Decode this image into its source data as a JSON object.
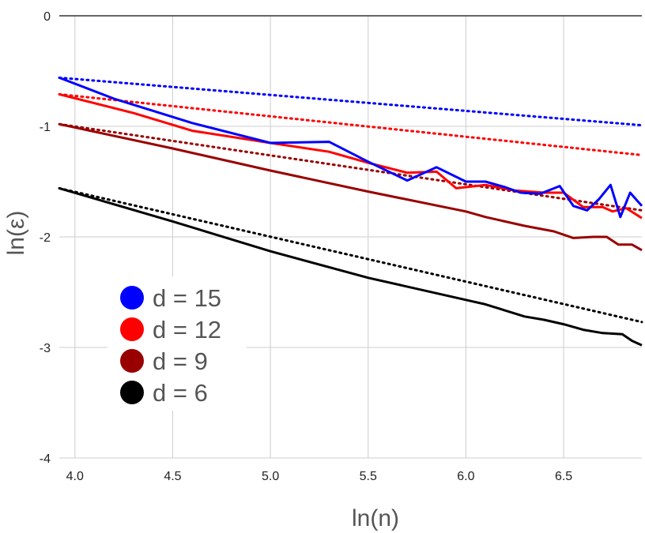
{
  "chart_data": {
    "type": "line",
    "xlabel": "ln(n)",
    "ylabel": "ln(ε)",
    "xlim": [
      3.92,
      6.9
    ],
    "ylim": [
      -4,
      0
    ],
    "x_ticks": [
      {
        "value": 4.0,
        "label": "4.0"
      },
      {
        "value": 4.5,
        "label": "4.5"
      },
      {
        "value": 5.0,
        "label": "5.0"
      },
      {
        "value": 5.5,
        "label": "5.5"
      },
      {
        "value": 6.0,
        "label": "6.0"
      },
      {
        "value": 6.5,
        "label": "6.5"
      }
    ],
    "y_ticks": [
      {
        "value": 0,
        "label": "0"
      },
      {
        "value": -1,
        "label": "-1"
      },
      {
        "value": -2,
        "label": "-2"
      },
      {
        "value": -3,
        "label": "-3"
      },
      {
        "value": -4,
        "label": "-4"
      }
    ],
    "grid": true,
    "legend_position": "lower-left",
    "series": [
      {
        "name": "d = 15",
        "color": "#0000ff",
        "points": [
          [
            3.92,
            -0.56
          ],
          [
            4.2,
            -0.75
          ],
          [
            4.6,
            -0.97
          ],
          [
            5.0,
            -1.15
          ],
          [
            5.3,
            -1.14
          ],
          [
            5.5,
            -1.32
          ],
          [
            5.7,
            -1.49
          ],
          [
            5.85,
            -1.37
          ],
          [
            6.0,
            -1.5
          ],
          [
            6.1,
            -1.5
          ],
          [
            6.2,
            -1.55
          ],
          [
            6.28,
            -1.6
          ],
          [
            6.38,
            -1.61
          ],
          [
            6.48,
            -1.54
          ],
          [
            6.55,
            -1.72
          ],
          [
            6.62,
            -1.76
          ],
          [
            6.68,
            -1.66
          ],
          [
            6.74,
            -1.53
          ],
          [
            6.79,
            -1.82
          ],
          [
            6.84,
            -1.6
          ],
          [
            6.9,
            -1.72
          ]
        ],
        "trend": [
          [
            3.92,
            -0.56
          ],
          [
            6.9,
            -0.99
          ]
        ]
      },
      {
        "name": "d = 12",
        "color": "#ff0000",
        "points": [
          [
            3.92,
            -0.71
          ],
          [
            4.3,
            -0.88
          ],
          [
            4.6,
            -1.04
          ],
          [
            5.0,
            -1.15
          ],
          [
            5.3,
            -1.23
          ],
          [
            5.5,
            -1.33
          ],
          [
            5.7,
            -1.42
          ],
          [
            5.85,
            -1.41
          ],
          [
            5.95,
            -1.56
          ],
          [
            6.1,
            -1.53
          ],
          [
            6.25,
            -1.58
          ],
          [
            6.4,
            -1.6
          ],
          [
            6.5,
            -1.6
          ],
          [
            6.6,
            -1.73
          ],
          [
            6.7,
            -1.73
          ],
          [
            6.75,
            -1.77
          ],
          [
            6.82,
            -1.74
          ],
          [
            6.9,
            -1.83
          ]
        ],
        "trend": [
          [
            3.92,
            -0.71
          ],
          [
            6.9,
            -1.26
          ]
        ]
      },
      {
        "name": "d = 9",
        "color": "#990000",
        "points": [
          [
            3.92,
            -0.98
          ],
          [
            4.5,
            -1.2
          ],
          [
            5.0,
            -1.4
          ],
          [
            5.5,
            -1.59
          ],
          [
            6.0,
            -1.77
          ],
          [
            6.1,
            -1.82
          ],
          [
            6.3,
            -1.9
          ],
          [
            6.45,
            -1.95
          ],
          [
            6.55,
            -2.01
          ],
          [
            6.65,
            -2.0
          ],
          [
            6.72,
            -2.0
          ],
          [
            6.78,
            -2.07
          ],
          [
            6.85,
            -2.07
          ],
          [
            6.9,
            -2.12
          ]
        ],
        "trend": [
          [
            3.92,
            -0.98
          ],
          [
            6.9,
            -1.76
          ]
        ]
      },
      {
        "name": "d = 6",
        "color": "#000000",
        "points": [
          [
            3.92,
            -1.56
          ],
          [
            4.5,
            -1.86
          ],
          [
            5.0,
            -2.13
          ],
          [
            5.5,
            -2.37
          ],
          [
            6.0,
            -2.57
          ],
          [
            6.1,
            -2.61
          ],
          [
            6.3,
            -2.72
          ],
          [
            6.4,
            -2.75
          ],
          [
            6.5,
            -2.79
          ],
          [
            6.6,
            -2.84
          ],
          [
            6.7,
            -2.87
          ],
          [
            6.8,
            -2.88
          ],
          [
            6.85,
            -2.94
          ],
          [
            6.9,
            -2.98
          ]
        ],
        "trend": [
          [
            3.92,
            -1.56
          ],
          [
            6.9,
            -2.77
          ]
        ]
      }
    ]
  }
}
